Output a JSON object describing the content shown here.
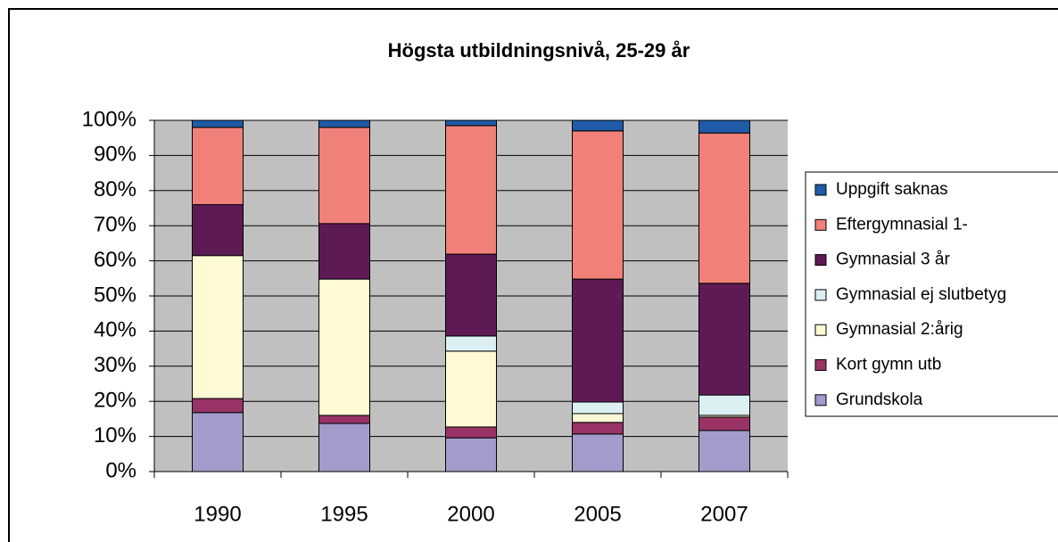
{
  "chart_data": {
    "type": "stacked_bar",
    "title": "Högsta utbildningsnivå, 25-29 år",
    "categories": [
      "1990",
      "1995",
      "2000",
      "2005",
      "2007"
    ],
    "series": [
      {
        "name": "Grundskola",
        "color": "#a29ccc",
        "values": [
          16.8,
          13.7,
          9.6,
          10.7,
          11.7
        ]
      },
      {
        "name": "Kort gymn utb",
        "color": "#993366",
        "values": [
          4,
          2.3,
          3.1,
          3.3,
          3.8
        ]
      },
      {
        "name": "Gymnasial 2:årig",
        "color": "#fffad4",
        "values": [
          40.7,
          38.8,
          21.6,
          2.5,
          0.5
        ]
      },
      {
        "name": "Gymnasial ej slutbetyg",
        "color": "#dcf0f4",
        "values": [
          0,
          0,
          4.3,
          3.3,
          5.8
        ]
      },
      {
        "name": "Gymnasial 3 år",
        "color": "#5e1a55",
        "values": [
          14.5,
          15.8,
          23.3,
          35,
          31.8
        ]
      },
      {
        "name": "Eftergymnasial 1-",
        "color": "#f08078",
        "values": [
          22,
          27.4,
          36.6,
          42.2,
          42.8
        ]
      },
      {
        "name": "Uppgift saknas",
        "color": "#1f5ba8",
        "values": [
          2,
          2,
          1.5,
          3,
          3.6
        ]
      }
    ],
    "ylim": [
      0,
      100
    ],
    "yticks": [
      {
        "value": 0,
        "label": "0%"
      },
      {
        "value": 10,
        "label": "10%"
      },
      {
        "value": 20,
        "label": "20%"
      },
      {
        "value": 30,
        "label": "30%"
      },
      {
        "value": 40,
        "label": "40%"
      },
      {
        "value": 50,
        "label": "50%"
      },
      {
        "value": 60,
        "label": "60%"
      },
      {
        "value": 70,
        "label": "70%"
      },
      {
        "value": 80,
        "label": "80%"
      },
      {
        "value": 90,
        "label": "90%"
      },
      {
        "value": 100,
        "label": "100%"
      }
    ],
    "grid": true,
    "legend": "right"
  }
}
